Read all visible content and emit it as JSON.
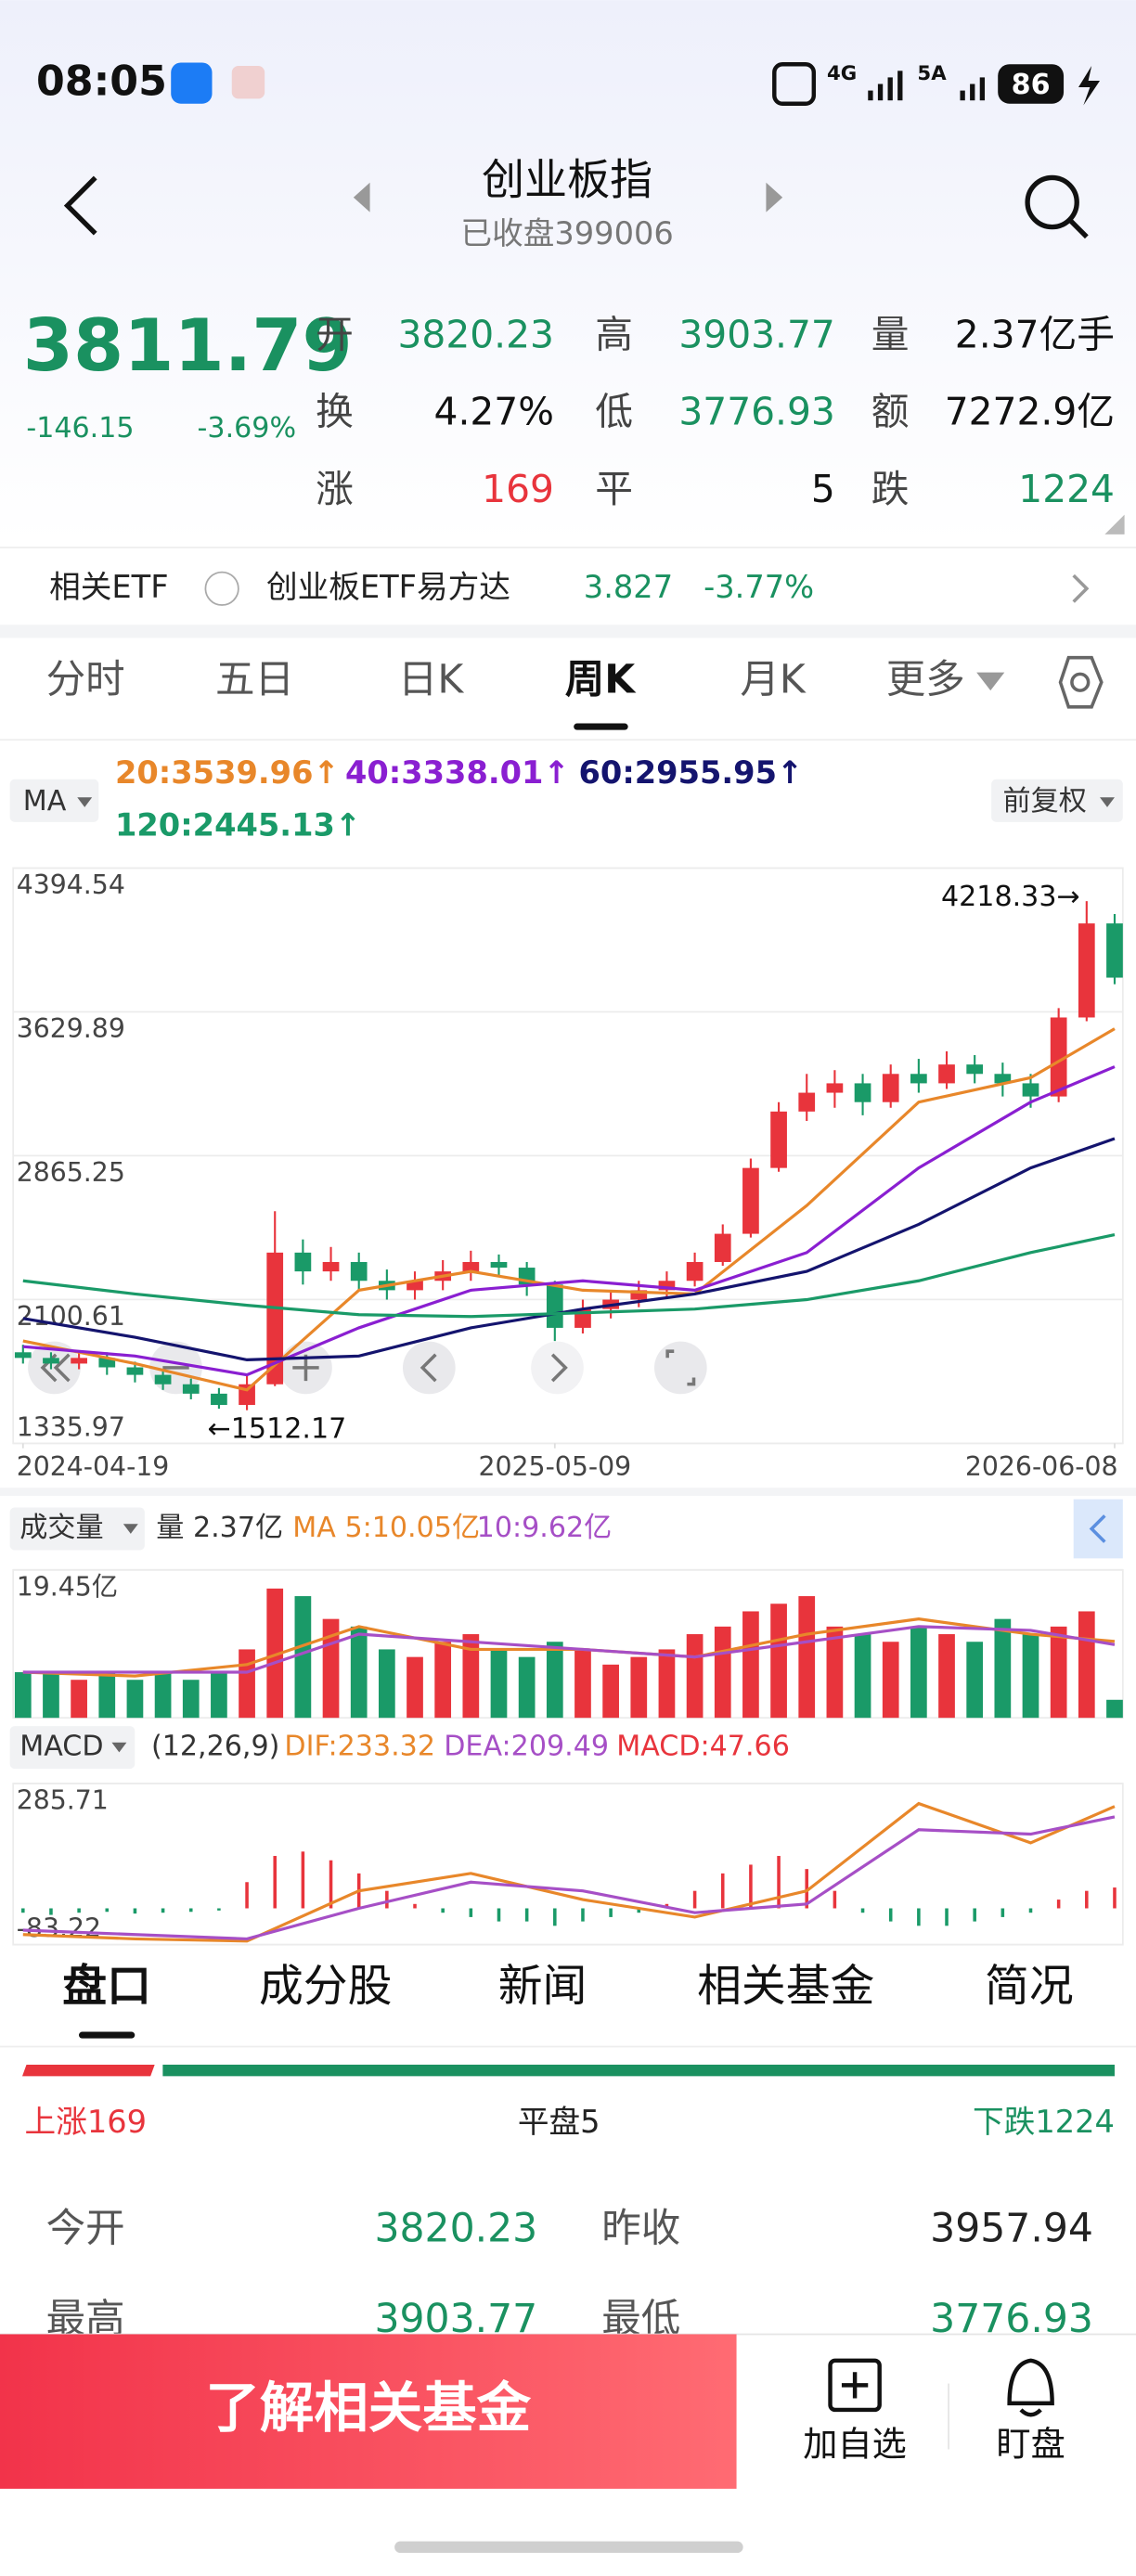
{
  "status": {
    "time": "08:05",
    "net1": "4G",
    "net2": "5A",
    "battery": "86"
  },
  "header": {
    "title": "创业板指",
    "subtitle": "已收盘399006"
  },
  "quote": {
    "price": "3811.79",
    "change": "-146.15",
    "pct": "-3.69%",
    "color": "#1a9160",
    "stats": [
      {
        "label": "开",
        "value": "3820.23",
        "color": "#1a9160"
      },
      {
        "label": "高",
        "value": "3903.77",
        "color": "#1a9160"
      },
      {
        "label": "量",
        "value": "2.37亿手",
        "color": "#111111"
      },
      {
        "label": "换",
        "value": "4.27%",
        "color": "#111111"
      },
      {
        "label": "低",
        "value": "3776.93",
        "color": "#1a9160"
      },
      {
        "label": "额",
        "value": "7272.9亿",
        "color": "#111111"
      },
      {
        "label": "涨",
        "value": "169",
        "color": "#e8343c"
      },
      {
        "label": "平",
        "value": "5",
        "color": "#111111"
      },
      {
        "label": "跌",
        "value": "1224",
        "color": "#1a9160"
      }
    ]
  },
  "etf": {
    "label": "相关ETF",
    "name": "创业板ETF易方达",
    "price": "3.827",
    "pct": "-3.77%"
  },
  "tabs": [
    "分时",
    "五日",
    "日K",
    "周K",
    "月K",
    "更多"
  ],
  "chart_controls": {
    "ma": "MA",
    "adjust": "前复权",
    "volume": "成交量",
    "volume_label": "量 2.37亿",
    "macd": "MACD",
    "macd_params": "(12,26,9)"
  },
  "chart_data": [
    {
      "type": "candlestick",
      "up_color": "#e8343c",
      "down_color": "#1a9a68",
      "open": [
        1820,
        1790,
        1760,
        1790,
        1740,
        1700,
        1650,
        1600,
        1540,
        1650,
        2350,
        2250,
        2300,
        2200,
        2150,
        2200,
        2250,
        2300,
        2270,
        2180,
        1950,
        2050,
        2100,
        2150,
        2200,
        2300,
        2450,
        2800,
        3100,
        3200,
        3250,
        3150,
        3300,
        3250,
        3350,
        3300,
        3250,
        3180,
        3600,
        4100
      ],
      "high": [
        1860,
        1820,
        1830,
        1820,
        1770,
        1730,
        1680,
        1630,
        1700,
        2570,
        2420,
        2380,
        2350,
        2260,
        2250,
        2310,
        2360,
        2340,
        2300,
        2200,
        2100,
        2150,
        2200,
        2250,
        2350,
        2500,
        2850,
        3150,
        3300,
        3320,
        3300,
        3350,
        3380,
        3420,
        3400,
        3360,
        3300,
        3650,
        4218.33,
        4150
      ],
      "low": [
        1760,
        1730,
        1730,
        1700,
        1660,
        1620,
        1570,
        1520,
        1512.17,
        1640,
        2180,
        2200,
        2150,
        2100,
        2100,
        2150,
        2200,
        2220,
        2120,
        1880,
        1920,
        2000,
        2060,
        2110,
        2170,
        2280,
        2430,
        2780,
        3050,
        3120,
        3080,
        3120,
        3200,
        3220,
        3250,
        3180,
        3120,
        3150,
        3580,
        3776.93
      ],
      "close": [
        1790,
        1760,
        1790,
        1740,
        1700,
        1650,
        1600,
        1540,
        1650,
        2350,
        2250,
        2300,
        2200,
        2150,
        2200,
        2250,
        2300,
        2270,
        2180,
        1950,
        2050,
        2100,
        2150,
        2200,
        2300,
        2450,
        2800,
        3100,
        3200,
        3250,
        3150,
        3300,
        3250,
        3350,
        3300,
        3250,
        3180,
        3600,
        4100,
        3811.79
      ],
      "ylim": [
        1335.97,
        4394.54
      ],
      "yticks": [
        4394.54,
        3629.89,
        2865.25,
        2100.61,
        1335.97
      ],
      "xticks": [
        {
          "value": 0,
          "label": "2024-04-19"
        },
        {
          "value": 19,
          "label": "2025-05-09"
        },
        {
          "value": 39,
          "label": "2026-06-08"
        }
      ],
      "annotations": {
        "high": "4218.33→",
        "low": "←1512.17"
      },
      "lines": [
        {
          "label": "20:3539.96↑",
          "color": "#e8872a",
          "x": [
            0,
            4,
            8,
            12,
            16,
            20,
            24,
            28,
            32,
            36,
            39
          ],
          "values": [
            1880,
            1760,
            1620,
            2150,
            2250,
            2150,
            2130,
            2600,
            3150,
            3280,
            3539.96
          ]
        },
        {
          "label": "40:3338.01↑",
          "color": "#8a1fd1",
          "x": [
            0,
            4,
            8,
            12,
            16,
            20,
            24,
            28,
            32,
            36,
            39
          ],
          "values": [
            1850,
            1800,
            1700,
            1950,
            2150,
            2200,
            2150,
            2350,
            2800,
            3150,
            3338.01
          ]
        },
        {
          "label": "60:2955.95↑",
          "color": "#14146e",
          "x": [
            0,
            4,
            8,
            12,
            16,
            20,
            24,
            28,
            32,
            36,
            39
          ],
          "values": [
            2000,
            1900,
            1780,
            1800,
            1950,
            2050,
            2130,
            2250,
            2500,
            2800,
            2955.95
          ]
        },
        {
          "label": "120:2445.13↑",
          "color": "#1a9a68",
          "x": [
            0,
            4,
            8,
            12,
            16,
            20,
            24,
            28,
            32,
            36,
            39
          ],
          "values": [
            2200,
            2130,
            2070,
            2020,
            2010,
            2030,
            2050,
            2100,
            2200,
            2350,
            2445.13
          ]
        }
      ]
    },
    {
      "type": "bar",
      "values": [
        6,
        6,
        5,
        6,
        5,
        6,
        5,
        6,
        9,
        17,
        16,
        13,
        12,
        9,
        8,
        10,
        11,
        9,
        8,
        10,
        9,
        7,
        8,
        9,
        11,
        12,
        14,
        15,
        16,
        12,
        11,
        10,
        12,
        11,
        10,
        13,
        11,
        12,
        14,
        2.37
      ],
      "ylim": [
        0,
        19.45
      ],
      "yticks": [
        {
          "value": 19.45,
          "label": "19.45亿"
        }
      ],
      "lines": [
        {
          "label": "MA 5:10.05亿",
          "color": "#e8872a",
          "x": [
            0,
            4,
            8,
            12,
            16,
            20,
            24,
            28,
            32,
            36,
            39
          ],
          "values": [
            6,
            5.5,
            7,
            12,
            9,
            9,
            8,
            11,
            13,
            11,
            10.05
          ]
        },
        {
          "label": "10:9.62亿",
          "color": "#a64fc6",
          "x": [
            0,
            4,
            8,
            12,
            16,
            20,
            24,
            28,
            32,
            36,
            39
          ],
          "values": [
            6,
            6,
            6,
            11,
            10,
            9,
            8,
            10,
            12,
            11.5,
            9.62
          ]
        }
      ]
    },
    {
      "type": "macd",
      "label": "MACD:47.66",
      "values": [
        -10,
        -15,
        -10,
        -8,
        -12,
        -10,
        -8,
        -5,
        60,
        120,
        130,
        110,
        80,
        40,
        10,
        -10,
        -20,
        -30,
        -30,
        -40,
        -30,
        -20,
        -10,
        10,
        40,
        80,
        100,
        120,
        90,
        40,
        -10,
        -30,
        -40,
        -40,
        -30,
        -20,
        -10,
        20,
        40,
        47.66
      ],
      "ylim": [
        -83.22,
        285.71
      ],
      "yticks": [
        285.71,
        -83.22
      ],
      "lines": [
        {
          "label": "DIF:233.32",
          "color": "#e8872a",
          "x": [
            0,
            4,
            8,
            12,
            16,
            20,
            24,
            28,
            32,
            36,
            39
          ],
          "values": [
            -60,
            -70,
            -75,
            40,
            80,
            20,
            -20,
            40,
            240,
            150,
            233.32
          ]
        },
        {
          "label": "DEA:209.49",
          "color": "#a64fc6",
          "x": [
            0,
            4,
            8,
            12,
            16,
            20,
            24,
            28,
            32,
            36,
            39
          ],
          "values": [
            -50,
            -60,
            -70,
            0,
            60,
            40,
            -10,
            10,
            180,
            170,
            209.49
          ]
        }
      ]
    }
  ],
  "detail_tabs": [
    "盘口",
    "成分股",
    "新闻",
    "相关基金",
    "简况"
  ],
  "breadth": {
    "up": "上涨169",
    "flat": "平盘5",
    "down": "下跌1224"
  },
  "table": {
    "rows": [
      [
        "今开",
        "3820.23",
        "昨收",
        "3957.94"
      ],
      [
        "最高",
        "3903.77",
        "最低",
        "3776.93"
      ]
    ]
  },
  "footer": {
    "button": "了解相关基金",
    "watch": "加自选",
    "monitor": "盯盘"
  }
}
